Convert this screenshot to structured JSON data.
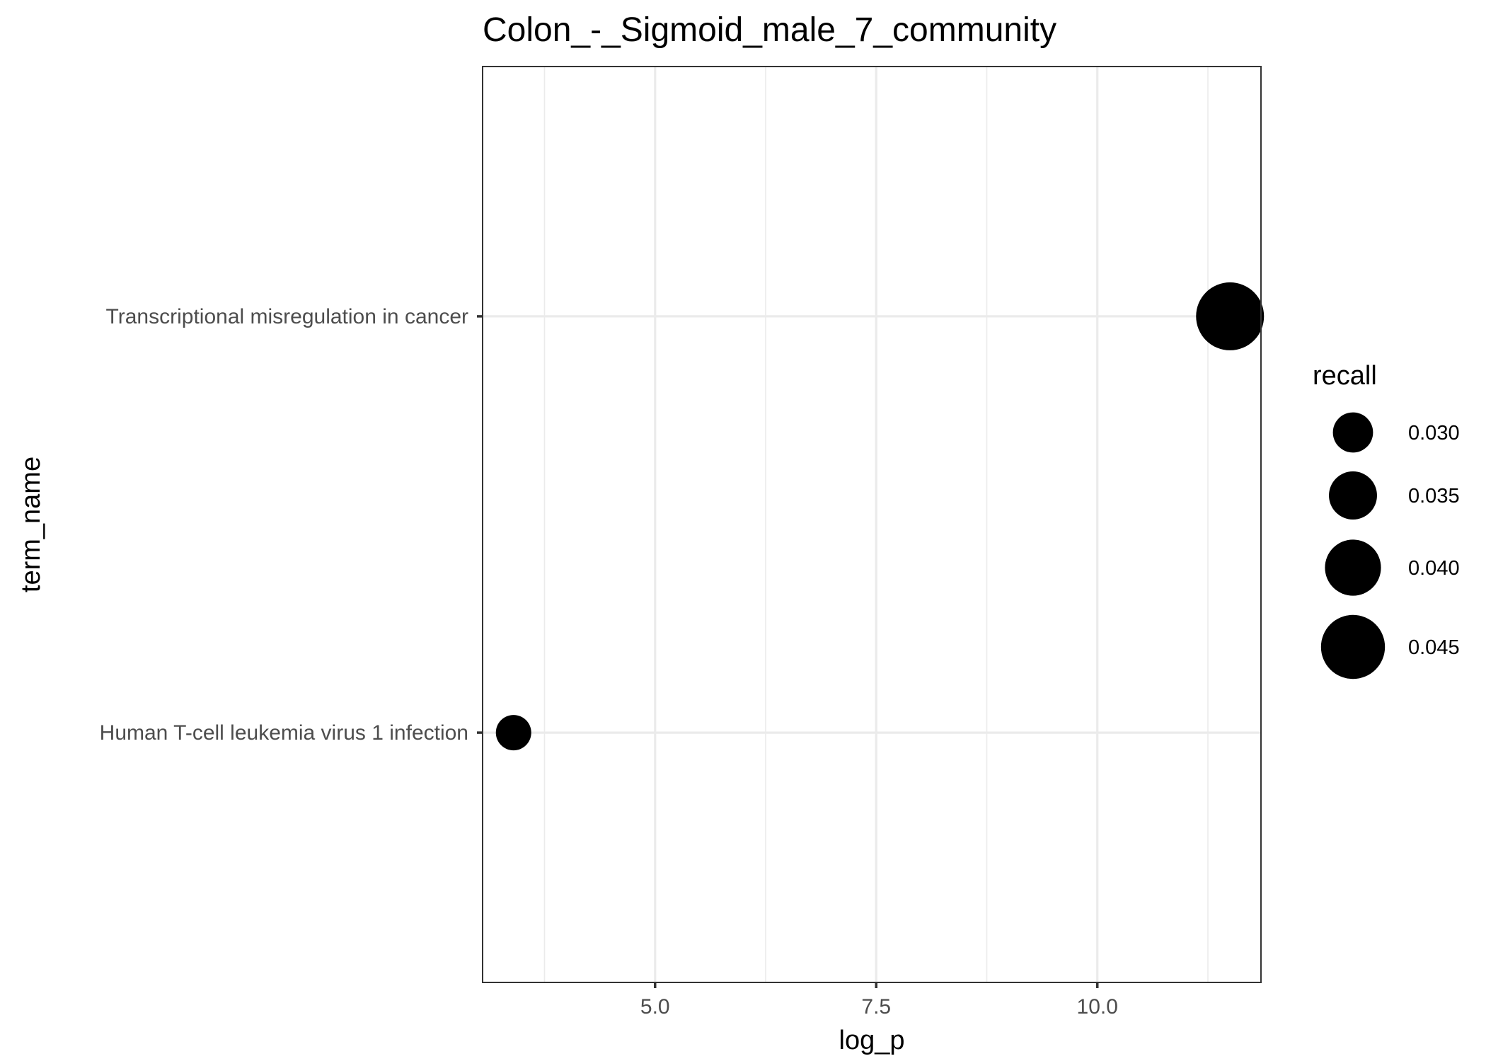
{
  "chart_data": {
    "type": "scatter",
    "title": "Colon_-_Sigmoid_male_7_community",
    "xlabel": "log_p",
    "ylabel": "term_name",
    "xlim": [
      3.05,
      11.85
    ],
    "x_ticks": [
      5.0,
      7.5,
      10.0
    ],
    "x_tick_labels": [
      "5.0",
      "7.5",
      "10.0"
    ],
    "x_minor_ticks": [
      3.75,
      6.25,
      8.75,
      11.25
    ],
    "categories": [
      "Human T-cell leukemia virus 1 infection",
      "Transcriptional misregulation in cancer"
    ],
    "points": [
      {
        "term_name": "Transcriptional misregulation in cancer",
        "log_p": 11.5,
        "recall": 0.0475
      },
      {
        "term_name": "Human T-cell leukemia virus 1 infection",
        "log_p": 3.4,
        "recall": 0.027
      }
    ],
    "size_legend": {
      "title": "recall",
      "values": [
        0.03,
        0.035,
        0.04,
        0.045
      ],
      "labels": [
        "0.030",
        "0.035",
        "0.040",
        "0.045"
      ]
    },
    "grid": true,
    "legend_position": "right",
    "point_color": "#000000",
    "panel_border_color": "#333333",
    "grid_color": "#ebebeb"
  }
}
